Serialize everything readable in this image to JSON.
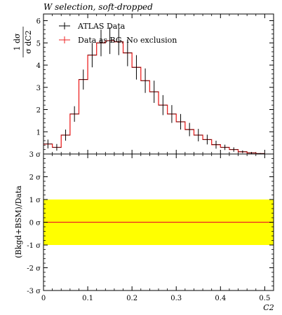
{
  "title": "W selection, soft-dropped",
  "chart_data": [
    {
      "type": "line",
      "panel": "main",
      "ylabel": {
        "num": "1  dσ",
        "den": "σ dC2"
      },
      "xlim": [
        0,
        0.52
      ],
      "ylim": [
        0,
        6.3
      ],
      "yticks": [
        1,
        2,
        3,
        4,
        5,
        6
      ],
      "legend": {
        "placement": "top-left",
        "entries": [
          "ATLAS Data",
          "Data as BG, No exclusion"
        ]
      },
      "bin_edges": [
        0.0,
        0.02,
        0.04,
        0.06,
        0.08,
        0.1,
        0.12,
        0.14,
        0.16,
        0.18,
        0.2,
        0.22,
        0.24,
        0.26,
        0.28,
        0.3,
        0.32,
        0.34,
        0.36,
        0.38,
        0.4,
        0.42,
        0.44,
        0.46,
        0.48,
        0.5
      ],
      "series": [
        {
          "name": "ATLAS Data",
          "style": "errorbar",
          "color": "#000000",
          "values": [
            0.45,
            0.3,
            0.85,
            1.8,
            3.35,
            4.45,
            5.0,
            5.1,
            5.05,
            4.55,
            3.9,
            3.3,
            2.8,
            2.2,
            1.8,
            1.45,
            1.1,
            0.85,
            0.65,
            0.42,
            0.3,
            0.2,
            0.1,
            0.05,
            0.02
          ],
          "errors": [
            0.2,
            0.15,
            0.25,
            0.35,
            0.45,
            0.55,
            0.6,
            0.6,
            0.6,
            0.6,
            0.55,
            0.55,
            0.5,
            0.45,
            0.4,
            0.35,
            0.3,
            0.28,
            0.22,
            0.18,
            0.12,
            0.1,
            0.06,
            0.04,
            0.02
          ]
        },
        {
          "name": "Data as BG, No exclusion",
          "style": "step",
          "color": "#ee2222",
          "values": [
            0.45,
            0.3,
            0.85,
            1.8,
            3.35,
            4.45,
            5.0,
            5.1,
            5.05,
            4.55,
            3.9,
            3.3,
            2.8,
            2.2,
            1.8,
            1.45,
            1.1,
            0.85,
            0.65,
            0.42,
            0.3,
            0.2,
            0.1,
            0.05,
            0.02
          ]
        }
      ]
    },
    {
      "type": "line",
      "panel": "ratio",
      "ylabel": "(Bkgd+BSM)/Data",
      "xlabel": "C2",
      "xlim": [
        0,
        0.52
      ],
      "ylim": [
        -3,
        3
      ],
      "xticks": [
        0,
        0.1,
        0.2,
        0.3,
        0.4,
        0.5
      ],
      "xtick_labels": [
        "0",
        "0.1",
        "0.2",
        "0.3",
        "0.4",
        "0.5"
      ],
      "yticks": [
        -3,
        -2,
        -1,
        0,
        1,
        2,
        3
      ],
      "ytick_labels": [
        "-3 σ",
        "-2 σ",
        "-1 σ",
        "0 σ",
        "1 σ",
        "2 σ",
        "3 σ"
      ],
      "band": {
        "low": -1,
        "high": 1,
        "color": "#ffff00"
      },
      "line": {
        "value": 0,
        "color": "#ee2222"
      }
    }
  ]
}
